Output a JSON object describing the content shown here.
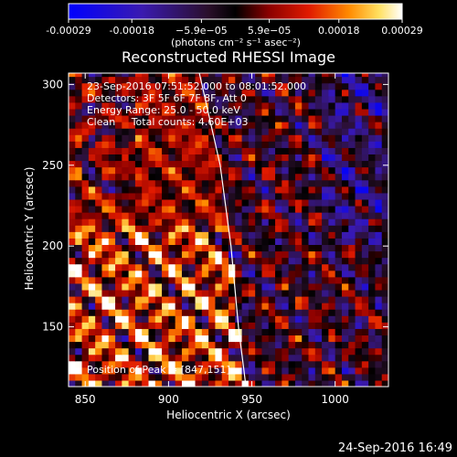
{
  "chart_data": {
    "type": "heatmap",
    "title": "Reconstructed RHESSI Image",
    "xlabel": "Heliocentric X (arcsec)",
    "ylabel": "Heliocentric Y (arcsec)",
    "xlim": [
      840,
      1032
    ],
    "ylim": [
      113,
      307
    ],
    "x_ticks": [
      850,
      900,
      950,
      1000
    ],
    "y_ticks": [
      150,
      200,
      250,
      300
    ],
    "colorbar": {
      "ticks": [
        -0.00029,
        -0.00018,
        -5.9e-05,
        5.9e-05,
        0.00018,
        0.00029
      ],
      "tick_labels": [
        "-0.00029",
        "-0.00018",
        "−5.9e−05",
        "5.9e−05",
        "0.00018",
        "0.00029"
      ],
      "range": [
        -0.00029,
        0.00029
      ],
      "units_label": "(photons cm⁻² s⁻¹ asec⁻²)"
    },
    "annotations": {
      "time_range": "23-Sep-2016 07:51:52.000 to 08:01:52.000",
      "detectors": "Detectors: 3F 5F 6F 7F 8F, Att 0",
      "energy": "Energy Range: 25.0 - 50.0 keV",
      "clean": "Clean     Total counts: 4.60E+03",
      "peak": "Position of Peak = [847,151]"
    },
    "limb_curve": [
      [
        918.5,
        307
      ],
      [
        931,
        250
      ],
      [
        937.5,
        200
      ],
      [
        942,
        150
      ],
      [
        946.5,
        113
      ]
    ],
    "peak_position": [
      847,
      151
    ],
    "colormap": "blue-purple-red-yellow-white"
  },
  "footer_timestamp": "24-Sep-2016 16:49"
}
